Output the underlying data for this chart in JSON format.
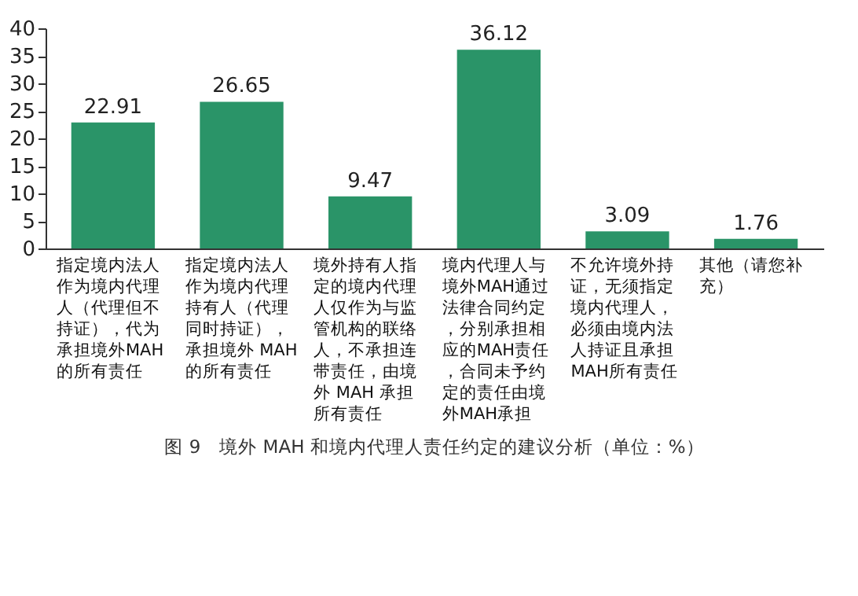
{
  "chart_data": {
    "type": "bar",
    "title": "图 9　境外 MAH 和境内代理人责任约定的建议分析（单位：%）",
    "categories": [
      "指定境内法人作为境内代理人（代理但不持证），代为承担境外MAH的所有责任",
      "指定境内法人作为境内代理持有人（代理同时持证），承担境外 MAH 的所有责任",
      "境外持有人指定的境内代理人仅作为与监管机构的联络人，不承担连带责任，由境外 MAH 承担所有责任",
      "境内代理人与境外MAH通过法律合同约定，分别承担相应的MAH责任，合同未予约定的责任由境外MAH承担",
      "不允许境外持证，无须指定境内代理人，必须由境内法人持证且承担MAH所有责任",
      "其他（请您补充）"
    ],
    "values": [
      22.91,
      26.65,
      9.47,
      36.12,
      3.09,
      1.76
    ],
    "color": "#2a9468",
    "data_labels": true,
    "ylim": [
      0,
      40
    ],
    "yticks": [
      0,
      5,
      10,
      15,
      20,
      25,
      30,
      35,
      40
    ],
    "grid": false
  }
}
